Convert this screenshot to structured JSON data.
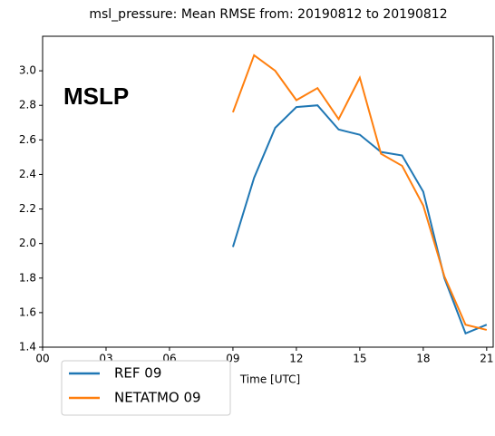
{
  "chart_data": {
    "type": "line",
    "title": "msl_pressure: Mean RMSE from: 20190812 to 20190812",
    "annotation": "MSLP",
    "x_label": "Time [UTC]",
    "x": [
      9,
      10,
      11,
      12,
      13,
      14,
      15,
      16,
      17,
      18,
      19,
      20,
      21
    ],
    "series": [
      {
        "name": "REF 09",
        "color": "#1f77b4",
        "values": [
          1.98,
          2.38,
          2.67,
          2.79,
          2.8,
          2.66,
          2.63,
          2.53,
          2.51,
          2.3,
          1.8,
          1.48,
          1.53
        ]
      },
      {
        "name": "NETATMO 09",
        "color": "#ff7f0e",
        "values": [
          2.76,
          3.09,
          3.0,
          2.83,
          2.9,
          2.72,
          2.96,
          2.52,
          2.45,
          2.22,
          1.81,
          1.53,
          1.5
        ]
      }
    ],
    "xlim": [
      0,
      21.35
    ],
    "ylim": [
      1.4,
      3.2
    ],
    "xticks": [
      {
        "value": 0,
        "label": "00"
      },
      {
        "value": 3,
        "label": "03"
      },
      {
        "value": 6,
        "label": "06"
      },
      {
        "value": 9,
        "label": "09"
      },
      12,
      15,
      18,
      21
    ],
    "yticks": [
      {
        "value": 1.4,
        "label": "1.4"
      },
      {
        "value": 1.6,
        "label": "1.6"
      },
      {
        "value": 1.8,
        "label": "1.8"
      },
      {
        "value": 2.0,
        "label": "2.0"
      },
      {
        "value": 2.2,
        "label": "2.2"
      },
      {
        "value": 2.4,
        "label": "2.4"
      },
      {
        "value": 2.6,
        "label": "2.6"
      },
      {
        "value": 2.8,
        "label": "2.8"
      },
      {
        "value": 3.0,
        "label": "3.0"
      }
    ],
    "legend": "lower-left-outside"
  }
}
